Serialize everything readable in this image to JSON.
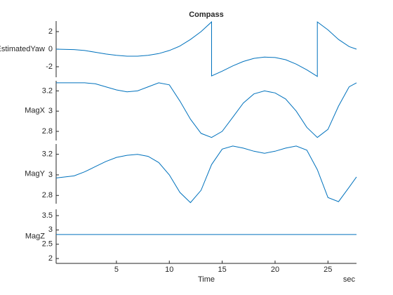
{
  "chart_data": [
    {
      "type": "line",
      "title": "Compass",
      "ylabel": "EstimatedYaw",
      "color": "#0072bd",
      "xlim": [
        -0.7,
        27.7
      ],
      "ylim": [
        -3.2,
        3.2
      ],
      "yticks": [
        2,
        0,
        -2
      ],
      "x": [
        -0.7,
        1,
        2,
        3,
        4,
        5,
        6,
        7,
        8,
        9,
        10,
        11,
        12,
        13,
        14,
        14,
        15,
        16,
        17,
        18,
        19,
        20,
        21,
        22,
        23,
        24,
        24,
        25,
        26,
        27,
        27.7
      ],
      "values": [
        0,
        -0.05,
        -0.15,
        -0.35,
        -0.55,
        -0.7,
        -0.8,
        -0.8,
        -0.7,
        -0.5,
        -0.15,
        0.35,
        1.1,
        2.0,
        3.1,
        -3.05,
        -2.5,
        -1.9,
        -1.4,
        -1.05,
        -0.9,
        -0.95,
        -1.2,
        -1.7,
        -2.35,
        -3.1,
        3.1,
        2.2,
        1.1,
        0.3,
        0.0
      ]
    },
    {
      "type": "line",
      "ylabel": "MagX",
      "color": "#0072bd",
      "xlim": [
        -0.7,
        27.7
      ],
      "ylim": [
        2.71,
        3.3
      ],
      "yticks": [
        3.2,
        3,
        2.8
      ],
      "x": [
        -0.7,
        1,
        2,
        3,
        4,
        5,
        6,
        7,
        8,
        9,
        10,
        11,
        12,
        13,
        14,
        15,
        16,
        17,
        18,
        19,
        20,
        21,
        22,
        23,
        24,
        25,
        26,
        27,
        27.7
      ],
      "values": [
        3.28,
        3.28,
        3.28,
        3.27,
        3.24,
        3.21,
        3.19,
        3.2,
        3.24,
        3.28,
        3.26,
        3.1,
        2.92,
        2.78,
        2.74,
        2.8,
        2.94,
        3.08,
        3.17,
        3.2,
        3.18,
        3.12,
        3.0,
        2.84,
        2.74,
        2.82,
        3.05,
        3.24,
        3.28
      ]
    },
    {
      "type": "line",
      "ylabel": "MagY",
      "color": "#0072bd",
      "xlim": [
        -0.7,
        27.7
      ],
      "ylim": [
        2.72,
        3.3
      ],
      "yticks": [
        3.2,
        3,
        2.8
      ],
      "x": [
        -0.7,
        1,
        2,
        3,
        4,
        5,
        6,
        7,
        8,
        9,
        10,
        11,
        12,
        13,
        14,
        15,
        16,
        17,
        18,
        19,
        20,
        21,
        22,
        23,
        24,
        25,
        26,
        27,
        27.7
      ],
      "values": [
        2.97,
        2.99,
        3.03,
        3.08,
        3.13,
        3.17,
        3.19,
        3.2,
        3.18,
        3.12,
        3.0,
        2.83,
        2.73,
        2.85,
        3.1,
        3.25,
        3.28,
        3.26,
        3.23,
        3.21,
        3.23,
        3.26,
        3.28,
        3.24,
        3.05,
        2.78,
        2.74,
        2.88,
        2.98
      ]
    },
    {
      "type": "line",
      "ylabel": "MagZ",
      "xlabel": "Time",
      "xunit": "sec",
      "color": "#0072bd",
      "xlim": [
        -0.7,
        27.7
      ],
      "ylim": [
        1.83,
        3.72
      ],
      "yticks": [
        3.5,
        3,
        2.5,
        2
      ],
      "xticks": [
        5,
        10,
        15,
        20,
        25
      ],
      "x": [
        -0.7,
        27.7
      ],
      "values": [
        2.84,
        2.84
      ]
    }
  ]
}
